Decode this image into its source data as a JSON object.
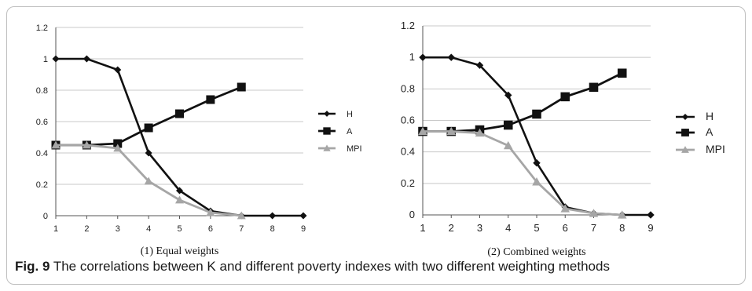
{
  "caption": {
    "figure_label": "Fig. 9",
    "text": "The correlations between K and different poverty indexes with two different weighting methods"
  },
  "colors": {
    "H": "#111111",
    "A": "#111111",
    "MPI": "#a6a6a6",
    "grid": "#c8c8c8",
    "axis": "#555555",
    "frame": "#bfbfbf"
  },
  "chart_data": [
    {
      "type": "line",
      "title": "(1) Equal weights",
      "x": [
        1,
        2,
        3,
        4,
        5,
        6,
        7,
        8,
        9
      ],
      "x_tick_labels": [
        "1",
        "2",
        "3",
        "4",
        "5",
        "6",
        "7",
        "8",
        "9"
      ],
      "y_tick_labels": [
        "0",
        "0.2",
        "0.4",
        "0.6",
        "0.8",
        "1",
        "1.2"
      ],
      "ylim": [
        0,
        1.2
      ],
      "grid": true,
      "legend_position": "right",
      "series": [
        {
          "name": "H",
          "marker": "diamond",
          "x": [
            1,
            2,
            3,
            4,
            5,
            6,
            7,
            8,
            9
          ],
          "values": [
            1.0,
            1.0,
            0.93,
            0.4,
            0.16,
            0.03,
            0.0,
            0.0,
            0.0
          ]
        },
        {
          "name": "A",
          "marker": "square",
          "x": [
            1,
            2,
            3,
            4,
            5,
            6,
            7
          ],
          "values": [
            0.45,
            0.45,
            0.46,
            0.56,
            0.65,
            0.74,
            0.82
          ]
        },
        {
          "name": "MPI",
          "marker": "triangle",
          "x": [
            1,
            2,
            3,
            4,
            5,
            6,
            7
          ],
          "values": [
            0.45,
            0.45,
            0.43,
            0.22,
            0.1,
            0.02,
            0.0
          ]
        }
      ]
    },
    {
      "type": "line",
      "title": "(2) Combined weights",
      "x": [
        1,
        2,
        3,
        4,
        5,
        6,
        7,
        8,
        9
      ],
      "x_tick_labels": [
        "1",
        "2",
        "3",
        "4",
        "5",
        "6",
        "7",
        "8",
        "9"
      ],
      "y_tick_labels": [
        "0",
        "0.2",
        "0.4",
        "0.6",
        "0.8",
        "1",
        "1.2"
      ],
      "ylim": [
        0,
        1.2
      ],
      "grid": true,
      "legend_position": "right",
      "series": [
        {
          "name": "H",
          "marker": "diamond",
          "x": [
            1,
            2,
            3,
            4,
            5,
            6,
            7,
            8,
            9
          ],
          "values": [
            1.0,
            1.0,
            0.95,
            0.76,
            0.33,
            0.05,
            0.01,
            0.0,
            0.0
          ]
        },
        {
          "name": "A",
          "marker": "square",
          "x": [
            1,
            2,
            3,
            4,
            5,
            6,
            7,
            8
          ],
          "values": [
            0.53,
            0.53,
            0.54,
            0.57,
            0.64,
            0.75,
            0.81,
            0.9
          ]
        },
        {
          "name": "MPI",
          "marker": "triangle",
          "x": [
            1,
            2,
            3,
            4,
            5,
            6,
            7,
            8
          ],
          "values": [
            0.53,
            0.53,
            0.52,
            0.44,
            0.21,
            0.04,
            0.01,
            0.0
          ]
        }
      ]
    }
  ]
}
